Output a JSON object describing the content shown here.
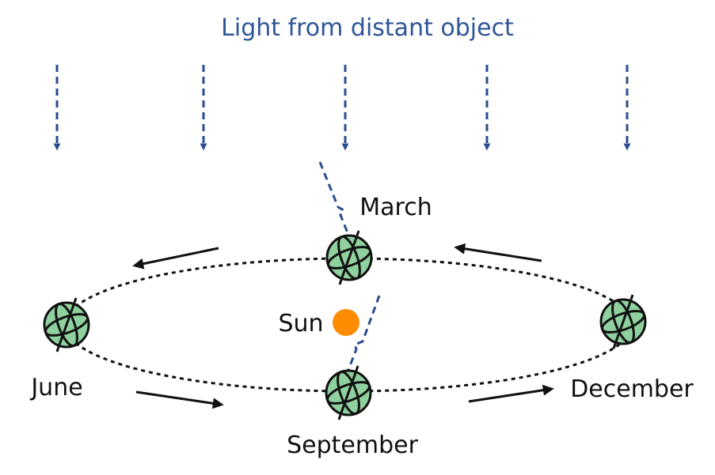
{
  "title": "Light from distant object",
  "labels": {
    "march": "March",
    "june": "June",
    "september": "September",
    "december": "December",
    "sun": "Sun"
  },
  "colors": {
    "light": "#2a4d8f",
    "title": "#2f5597",
    "earth_fill": "#8fd19e",
    "earth_stroke": "#111111",
    "sun": "#ff8c00",
    "orbit": "#111111"
  }
}
